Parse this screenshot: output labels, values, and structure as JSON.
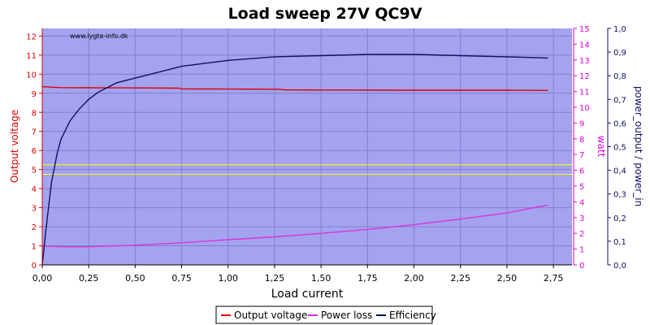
{
  "chart_data": {
    "type": "line",
    "title": "Load sweep 27V QC9V",
    "watermark": "www.lygte-info.dk",
    "xlabel": "Load current",
    "ylabel_left": "Output voltage",
    "ylabel_right1": "watt",
    "ylabel_right2": "power_output / power_in",
    "xlim": [
      0,
      2.85
    ],
    "ylim_left": [
      0,
      12.4
    ],
    "ylim_right1": [
      0,
      15.0
    ],
    "ylim_right2": [
      0,
      1.0
    ],
    "x_ticks": [
      "0,00",
      "0,25",
      "0,50",
      "0,75",
      "1,00",
      "1,25",
      "1,50",
      "1,75",
      "2,00",
      "2,25",
      "2,50",
      "2,75"
    ],
    "x_tick_values": [
      0,
      0.25,
      0.5,
      0.75,
      1.0,
      1.25,
      1.5,
      1.75,
      2.0,
      2.25,
      2.5,
      2.75
    ],
    "y_left_ticks": [
      "0",
      "1",
      "2",
      "3",
      "4",
      "5",
      "6",
      "7",
      "8",
      "9",
      "10",
      "11",
      "12"
    ],
    "y_right1_ticks": [
      "0",
      "1",
      "2",
      "3",
      "4",
      "5",
      "6",
      "7",
      "8",
      "9",
      "10",
      "11",
      "12",
      "13",
      "14",
      "15"
    ],
    "y_right2_ticks": [
      "0,0",
      "0,1",
      "0,2",
      "0,3",
      "0,4",
      "0,5",
      "0,6",
      "0,7",
      "0,8",
      "0,9",
      "1,0"
    ],
    "reference_lines_left": [
      4.75,
      5.25
    ],
    "grid": true,
    "legend_position": "bottom-center",
    "colors": {
      "plot_background": "#a3a3f0",
      "grid": "#8080d0",
      "reference_line": "#ffff00",
      "output_voltage": "#dd0000",
      "power_loss": "#dd33dd",
      "efficiency": "#101060",
      "left_axis": "#dd0000",
      "right1_axis": "#dd00dd",
      "right2_axis": "#101060"
    },
    "series": [
      {
        "name": "Output voltage",
        "axis": "left",
        "x": [
          0.0,
          0.05,
          0.1,
          0.25,
          0.5,
          0.74,
          0.75,
          1.0,
          1.28,
          1.3,
          1.5,
          2.0,
          2.5,
          2.72
        ],
        "values": [
          9.35,
          9.32,
          9.3,
          9.29,
          9.28,
          9.27,
          9.23,
          9.22,
          9.21,
          9.18,
          9.17,
          9.16,
          9.16,
          9.15
        ]
      },
      {
        "name": "Power loss",
        "axis": "right1",
        "x": [
          0.0,
          0.1,
          0.25,
          0.5,
          0.75,
          1.0,
          1.25,
          1.5,
          1.75,
          2.0,
          2.25,
          2.5,
          2.72
        ],
        "values": [
          1.2,
          1.15,
          1.15,
          1.25,
          1.4,
          1.6,
          1.78,
          2.0,
          2.25,
          2.55,
          2.9,
          3.3,
          3.8
        ]
      },
      {
        "name": "Efficiency",
        "axis": "right2",
        "x": [
          0.0,
          0.02,
          0.05,
          0.08,
          0.1,
          0.15,
          0.2,
          0.25,
          0.3,
          0.35,
          0.4,
          0.5,
          0.6,
          0.75,
          0.9,
          1.0,
          1.25,
          1.5,
          1.75,
          2.0,
          2.25,
          2.5,
          2.72
        ],
        "values": [
          0.0,
          0.15,
          0.35,
          0.47,
          0.53,
          0.61,
          0.66,
          0.7,
          0.73,
          0.75,
          0.77,
          0.79,
          0.81,
          0.84,
          0.855,
          0.865,
          0.88,
          0.885,
          0.89,
          0.89,
          0.885,
          0.88,
          0.875
        ]
      }
    ]
  }
}
